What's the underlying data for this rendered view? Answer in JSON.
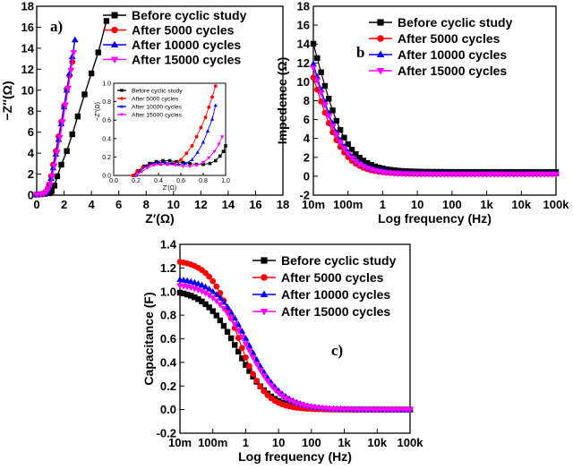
{
  "colors": {
    "before": "#000000",
    "c5000": "#ff0000",
    "c10000": "#0000ff",
    "c15000": "#ff00ff"
  },
  "chart_data": [
    {
      "id": "a",
      "type": "scatter",
      "panel_label": "a)",
      "title": "",
      "xlabel": "Z′(Ω)",
      "ylabel": "−Z′′(Ω)",
      "xlim": [
        0,
        18
      ],
      "ylim": [
        0,
        18
      ],
      "xticks": [
        "0",
        "2",
        "4",
        "6",
        "8",
        "10",
        "12",
        "14",
        "16",
        "18"
      ],
      "yticks": [
        "0",
        "2",
        "4",
        "6",
        "8",
        "10",
        "12",
        "14",
        "16",
        "18"
      ],
      "legend": [
        "Before cyclic study",
        "After 5000 cycles",
        "After 10000 cycles",
        "After 15000 cycles"
      ],
      "series": [
        {
          "name": "Before cyclic study",
          "x": [
            0,
            0.3,
            0.6,
            0.9,
            1.0,
            1.1,
            1.3,
            1.5,
            1.8,
            2.2,
            2.6,
            3.0,
            3.5,
            4.0,
            4.5,
            5.1
          ],
          "y": [
            0.05,
            0.08,
            0.12,
            0.18,
            0.25,
            0.4,
            0.9,
            1.8,
            2.9,
            4.2,
            5.8,
            7.5,
            9.6,
            11.6,
            13.6,
            16.6
          ]
        },
        {
          "name": "After 5000 cycles",
          "x": [
            0,
            0.3,
            0.5,
            0.7,
            0.8,
            0.9,
            1.05,
            1.2,
            1.4,
            1.6,
            1.8,
            2.0,
            2.2,
            2.4,
            2.6
          ],
          "y": [
            0.05,
            0.08,
            0.15,
            0.35,
            0.6,
            1.0,
            1.8,
            2.9,
            4.2,
            5.6,
            7.0,
            8.5,
            10.1,
            11.4,
            12.7
          ]
        },
        {
          "name": "After 10000 cycles",
          "x": [
            0,
            0.3,
            0.5,
            0.7,
            0.8,
            0.9,
            1.05,
            1.2,
            1.4,
            1.6,
            1.8,
            2.0,
            2.2,
            2.4,
            2.6,
            2.8
          ],
          "y": [
            0.05,
            0.08,
            0.15,
            0.3,
            0.5,
            0.9,
            1.6,
            2.6,
            3.9,
            5.3,
            6.8,
            8.4,
            10.0,
            11.6,
            13.2,
            14.8
          ]
        },
        {
          "name": "After 15000 cycles",
          "x": [
            0,
            0.3,
            0.5,
            0.7,
            0.85,
            1.0,
            1.15,
            1.3,
            1.5,
            1.7,
            1.9,
            2.1,
            2.3,
            2.5,
            2.7
          ],
          "y": [
            0.05,
            0.08,
            0.15,
            0.3,
            0.6,
            1.0,
            1.8,
            2.8,
            4.1,
            5.5,
            7.0,
            8.6,
            10.2,
            11.9,
            13.6
          ]
        }
      ]
    },
    {
      "id": "a-inset",
      "type": "scatter",
      "title": "",
      "xlabel": "Z′(Ω)",
      "ylabel": "−Z′′(Ω)",
      "xlim": [
        0,
        1.0
      ],
      "ylim": [
        0,
        1.0
      ],
      "xticks": [
        "0.0",
        "0.2",
        "0.4",
        "0.6",
        "0.8",
        "1.0"
      ],
      "yticks": [
        "0.0",
        "0.2",
        "0.4",
        "0.6",
        "0.8",
        "1.0"
      ],
      "legend": [
        "Before cyclic study",
        "After 5000 cycles",
        "After 10000 cycles",
        "After 15000 cycles"
      ],
      "series": [
        {
          "name": "Before cyclic study",
          "x": [
            0.18,
            0.22,
            0.27,
            0.32,
            0.38,
            0.44,
            0.5,
            0.56,
            0.62,
            0.68,
            0.74,
            0.8,
            0.86,
            0.91,
            0.95,
            0.98,
            1.0
          ],
          "y": [
            0.0,
            0.05,
            0.1,
            0.13,
            0.15,
            0.16,
            0.16,
            0.15,
            0.14,
            0.13,
            0.12,
            0.12,
            0.13,
            0.16,
            0.21,
            0.26,
            0.32
          ]
        },
        {
          "name": "After 5000 cycles",
          "x": [
            0.17,
            0.21,
            0.26,
            0.31,
            0.36,
            0.42,
            0.48,
            0.54,
            0.6,
            0.65,
            0.7,
            0.74,
            0.78,
            0.82,
            0.85,
            0.88,
            0.91
          ],
          "y": [
            0.0,
            0.05,
            0.09,
            0.11,
            0.12,
            0.12,
            0.12,
            0.13,
            0.17,
            0.24,
            0.32,
            0.42,
            0.52,
            0.63,
            0.74,
            0.85,
            0.97
          ]
        },
        {
          "name": "After 10000 cycles",
          "x": [
            0.2,
            0.24,
            0.29,
            0.34,
            0.4,
            0.46,
            0.52,
            0.58,
            0.64,
            0.7,
            0.75,
            0.8,
            0.84,
            0.88,
            0.91
          ],
          "y": [
            0.0,
            0.05,
            0.1,
            0.13,
            0.14,
            0.14,
            0.13,
            0.12,
            0.13,
            0.17,
            0.25,
            0.36,
            0.48,
            0.61,
            0.76
          ]
        },
        {
          "name": "After 15000 cycles",
          "x": [
            0.2,
            0.25,
            0.3,
            0.36,
            0.42,
            0.48,
            0.55,
            0.62,
            0.68,
            0.74,
            0.8,
            0.85,
            0.9,
            0.94,
            0.97
          ],
          "y": [
            0.0,
            0.04,
            0.08,
            0.11,
            0.12,
            0.12,
            0.11,
            0.1,
            0.1,
            0.11,
            0.14,
            0.19,
            0.26,
            0.34,
            0.42
          ]
        }
      ]
    },
    {
      "id": "b",
      "type": "scatter",
      "panel_label": "b",
      "title": "",
      "xlabel": "Log frequency (Hz)",
      "ylabel": "Impedence (Ω)",
      "xscale": "log",
      "xlim": [
        0.01,
        100000
      ],
      "ylim": [
        -2,
        18
      ],
      "xticks": [
        "10m",
        "100m",
        "1",
        "10",
        "100",
        "1k",
        "10k",
        "100k"
      ],
      "yticks": [
        "-2",
        "0",
        "2",
        "4",
        "6",
        "8",
        "10",
        "12",
        "14",
        "16",
        "18"
      ],
      "legend": [
        "Before cyclic study",
        "After 5000 cycles",
        "After 10000 cycles",
        "After 15000 cycles"
      ],
      "model": {
        "form": "y = floor + amp / (1 + (f/fc)^p)",
        "fmin": 0.01,
        "fmax": 100000,
        "points": 64
      },
      "series": [
        {
          "name": "Before cyclic study",
          "floor": 0.45,
          "amp": 25.0,
          "fc": 0.012,
          "p": 0.95
        },
        {
          "name": "After 5000 cycles",
          "floor": 0.25,
          "amp": 19.0,
          "fc": 0.0115,
          "p": 1.05
        },
        {
          "name": "After 10000 cycles",
          "floor": 0.3,
          "amp": 21.5,
          "fc": 0.0117,
          "p": 1.0
        },
        {
          "name": "After 15000 cycles",
          "floor": 0.2,
          "amp": 21.0,
          "fc": 0.0116,
          "p": 1.0
        }
      ]
    },
    {
      "id": "c",
      "type": "scatter",
      "panel_label": "c)",
      "title": "",
      "xlabel": "Log frequency (Hz)",
      "ylabel": "Capacitance (F)",
      "xscale": "log",
      "xlim": [
        0.01,
        100000
      ],
      "ylim": [
        -0.2,
        1.4
      ],
      "xticks": [
        "10m",
        "100m",
        "1",
        "10",
        "100",
        "1k",
        "10k",
        "100k"
      ],
      "yticks": [
        "-0.2",
        "0.0",
        "0.2",
        "0.4",
        "0.6",
        "0.8",
        "1.0",
        "1.2",
        "1.4"
      ],
      "legend": [
        "Before cyclic study",
        "After 5000 cycles",
        "After 10000 cycles",
        "After 15000 cycles"
      ],
      "model": {
        "form": "y = amp / (1 + (f/fc)^p)",
        "fmin": 0.01,
        "fmax": 100000,
        "points": 64
      },
      "series": [
        {
          "name": "Before cyclic study",
          "amp": 1.02,
          "fc": 0.55,
          "p": 0.88
        },
        {
          "name": "After 5000 cycles",
          "amp": 1.27,
          "fc": 0.55,
          "p": 1.05
        },
        {
          "name": "After 10000 cycles",
          "amp": 1.12,
          "fc": 1.2,
          "p": 0.85
        },
        {
          "name": "After 15000 cycles",
          "amp": 1.07,
          "fc": 1.1,
          "p": 0.85
        }
      ]
    }
  ]
}
